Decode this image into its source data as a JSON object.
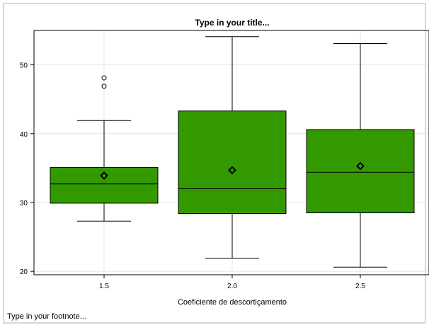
{
  "chart_data": {
    "type": "box",
    "title": "Type in your title...",
    "footnote": "Type in your footnote...",
    "xlabel": "Coeficiente de descortiçamento",
    "ylabel": "",
    "categories": [
      "1.5",
      "2.0",
      "2.5"
    ],
    "ylim": [
      19.5,
      55
    ],
    "yticks": [
      20,
      30,
      40,
      50
    ],
    "grid": true,
    "boxes": [
      {
        "category": "1.5",
        "whisker_low": 27.3,
        "q1": 29.9,
        "median": 32.7,
        "q3": 35.1,
        "whisker_high": 41.9,
        "mean": 33.9,
        "outliers": [
          46.9,
          48.1
        ]
      },
      {
        "category": "2.0",
        "whisker_low": 21.9,
        "q1": 28.4,
        "median": 32.0,
        "q3": 43.3,
        "whisker_high": 54.1,
        "mean": 34.7,
        "outliers": []
      },
      {
        "category": "2.5",
        "whisker_low": 20.6,
        "q1": 28.5,
        "median": 34.4,
        "q3": 40.6,
        "whisker_high": 53.1,
        "mean": 35.3,
        "outliers": []
      }
    ],
    "colors": {
      "box_fill": "#339900",
      "grid": "#e4e4e4",
      "axis": "#000000",
      "frame": "#b0b0b0"
    }
  }
}
